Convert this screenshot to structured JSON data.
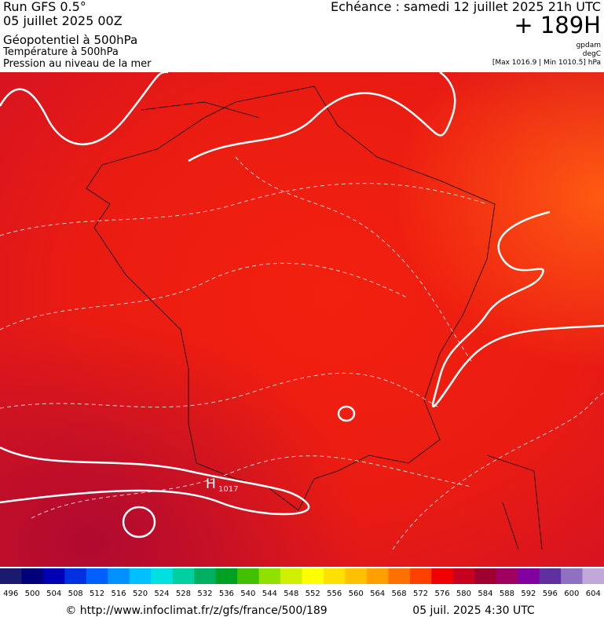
{
  "header": {
    "run": "Run GFS 0.5°",
    "date": "05 juillet 2025 00Z",
    "title": "Géopotentiel à 500hPa",
    "subtitle1": "Température à 500hPa",
    "subtitle2": "Pression au niveau de la mer",
    "echeance": "Echéance : samedi 12 juillet 2025 21h UTC",
    "hour": "+ 189H",
    "unit1": "gpdam",
    "unit2": "degC",
    "range": "[Max 1016.9 | Min 1010.5] hPa"
  },
  "map": {
    "high_label": "H",
    "high_value": "1017"
  },
  "colorbar": {
    "labels": [
      496,
      500,
      504,
      508,
      512,
      516,
      520,
      524,
      528,
      532,
      536,
      540,
      544,
      548,
      552,
      556,
      560,
      564,
      568,
      572,
      576,
      580,
      584,
      588,
      592,
      596,
      600,
      604
    ],
    "colors": [
      "#1a1a6e",
      "#00007a",
      "#0000b4",
      "#0030e0",
      "#0060ff",
      "#0090ff",
      "#00c0ff",
      "#00e0e0",
      "#00d0a0",
      "#00b060",
      "#00a020",
      "#40c000",
      "#90e000",
      "#d0f000",
      "#ffff00",
      "#ffe000",
      "#ffc000",
      "#ffa000",
      "#ff7000",
      "#ff4000",
      "#f00000",
      "#c80020",
      "#a00030",
      "#a00060",
      "#8000a0",
      "#6030a0",
      "#9070c0",
      "#c0a8d8"
    ]
  },
  "footer": {
    "url": "© http://www.infoclimat.fr/z/gfs/france/500/189",
    "time": "05 juil. 2025  4:30 UTC"
  }
}
